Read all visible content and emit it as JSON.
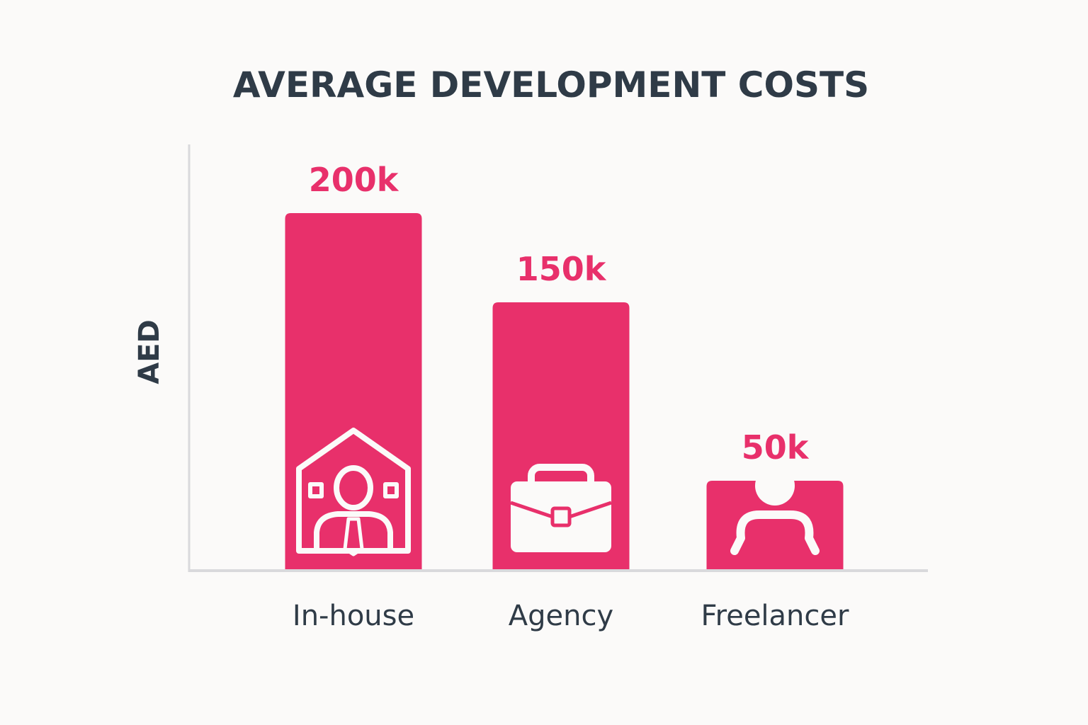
{
  "chart_data": {
    "type": "bar",
    "title": "AVERAGE DEVELOPMENT COSTS",
    "xlabel": "",
    "ylabel": "AED",
    "categories": [
      "In-house",
      "Agency",
      "Freelancer"
    ],
    "values": [
      200000,
      150000,
      50000
    ],
    "value_labels": [
      "200k",
      "150k",
      "50k"
    ],
    "icons": [
      "in-house-office-icon",
      "briefcase-icon",
      "freelancer-person-icon"
    ],
    "grid": false,
    "colors": {
      "bar": "#e8306b",
      "text": "#2f3b47",
      "axis": "#d9d9dc",
      "icon": "#fbfaf9"
    }
  }
}
